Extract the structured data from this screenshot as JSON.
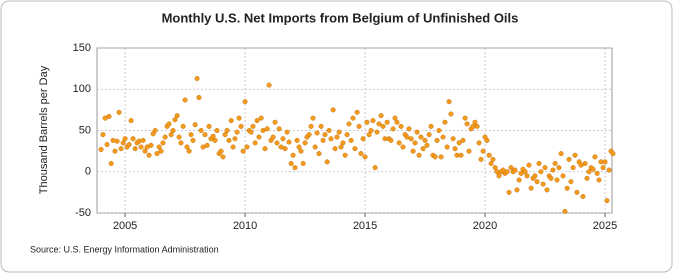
{
  "chart_data": {
    "type": "scatter",
    "title": "Monthly U.S. Net Imports from Belgium of Unfinished Oils",
    "y_label": "Thousand Barrels per Day",
    "source": "Source: U.S. Energy Information Administration",
    "color": "#f59a1c",
    "grid": true,
    "xlim": [
      2003.83,
      2025.29
    ],
    "ylim": [
      -50,
      150
    ],
    "xticks": [
      2005,
      2010,
      2015,
      2020,
      2025
    ],
    "yticks": [
      -50,
      0,
      50,
      100,
      150
    ],
    "x": [
      2004.0,
      2004.08,
      2004.17,
      2004.25,
      2004.33,
      2004.42,
      2004.5,
      2004.58,
      2004.67,
      2004.75,
      2004.83,
      2004.92,
      2005.0,
      2005.08,
      2005.17,
      2005.25,
      2005.33,
      2005.42,
      2005.5,
      2005.58,
      2005.67,
      2005.75,
      2005.83,
      2005.92,
      2006.0,
      2006.08,
      2006.17,
      2006.25,
      2006.33,
      2006.42,
      2006.5,
      2006.58,
      2006.67,
      2006.75,
      2006.83,
      2006.92,
      2007.0,
      2007.08,
      2007.17,
      2007.25,
      2007.33,
      2007.42,
      2007.5,
      2007.58,
      2007.67,
      2007.75,
      2007.83,
      2007.92,
      2008.0,
      2008.08,
      2008.17,
      2008.25,
      2008.33,
      2008.42,
      2008.5,
      2008.58,
      2008.67,
      2008.75,
      2008.83,
      2008.92,
      2009.0,
      2009.08,
      2009.17,
      2009.25,
      2009.33,
      2009.42,
      2009.5,
      2009.58,
      2009.67,
      2009.75,
      2009.83,
      2009.92,
      2010.0,
      2010.08,
      2010.17,
      2010.25,
      2010.33,
      2010.42,
      2010.5,
      2010.58,
      2010.67,
      2010.75,
      2010.83,
      2010.92,
      2011.0,
      2011.08,
      2011.17,
      2011.25,
      2011.33,
      2011.42,
      2011.5,
      2011.58,
      2011.67,
      2011.75,
      2011.83,
      2011.92,
      2012.0,
      2012.08,
      2012.17,
      2012.25,
      2012.33,
      2012.42,
      2012.5,
      2012.58,
      2012.67,
      2012.75,
      2012.83,
      2012.92,
      2013.0,
      2013.08,
      2013.17,
      2013.25,
      2013.33,
      2013.42,
      2013.5,
      2013.58,
      2013.67,
      2013.75,
      2013.83,
      2013.92,
      2014.0,
      2014.08,
      2014.17,
      2014.25,
      2014.33,
      2014.42,
      2014.5,
      2014.58,
      2014.67,
      2014.75,
      2014.83,
      2014.92,
      2015.0,
      2015.08,
      2015.17,
      2015.25,
      2015.33,
      2015.42,
      2015.5,
      2015.58,
      2015.67,
      2015.75,
      2015.83,
      2015.92,
      2016.0,
      2016.08,
      2016.17,
      2016.25,
      2016.33,
      2016.42,
      2016.5,
      2016.58,
      2016.67,
      2016.75,
      2016.83,
      2016.92,
      2017.0,
      2017.08,
      2017.17,
      2017.25,
      2017.33,
      2017.42,
      2017.5,
      2017.58,
      2017.67,
      2017.75,
      2017.83,
      2017.92,
      2018.0,
      2018.08,
      2018.17,
      2018.25,
      2018.33,
      2018.42,
      2018.5,
      2018.58,
      2018.67,
      2018.75,
      2018.83,
      2018.92,
      2019.0,
      2019.08,
      2019.17,
      2019.25,
      2019.33,
      2019.42,
      2019.5,
      2019.58,
      2019.67,
      2019.75,
      2019.83,
      2019.92,
      2020.0,
      2020.08,
      2020.17,
      2020.25,
      2020.33,
      2020.42,
      2020.5,
      2020.58,
      2020.67,
      2020.75,
      2020.83,
      2020.92,
      2021.0,
      2021.08,
      2021.17,
      2021.25,
      2021.33,
      2021.42,
      2021.5,
      2021.58,
      2021.67,
      2021.75,
      2021.83,
      2021.92,
      2022.0,
      2022.08,
      2022.17,
      2022.25,
      2022.33,
      2022.42,
      2022.5,
      2022.58,
      2022.67,
      2022.75,
      2022.83,
      2022.92,
      2023.0,
      2023.08,
      2023.17,
      2023.25,
      2023.33,
      2023.42,
      2023.5,
      2023.58,
      2023.67,
      2023.75,
      2023.83,
      2023.92,
      2024.0,
      2024.08,
      2024.17,
      2024.25,
      2024.33,
      2024.42,
      2024.5,
      2024.58,
      2024.67,
      2024.75,
      2024.83,
      2024.92,
      2025.0,
      2025.08,
      2025.17,
      2025.25,
      2025.33
    ],
    "values": [
      27,
      45,
      65,
      33,
      67,
      10,
      38,
      25,
      37,
      72,
      28,
      35,
      40,
      30,
      33,
      62,
      40,
      28,
      35,
      37,
      30,
      38,
      25,
      30,
      20,
      32,
      46,
      50,
      22,
      30,
      25,
      35,
      42,
      55,
      58,
      45,
      50,
      63,
      68,
      42,
      35,
      55,
      87,
      30,
      25,
      45,
      38,
      57,
      113,
      90,
      50,
      30,
      45,
      32,
      55,
      40,
      43,
      38,
      50,
      22,
      25,
      18,
      45,
      50,
      38,
      62,
      30,
      40,
      48,
      65,
      55,
      25,
      85,
      30,
      50,
      48,
      55,
      35,
      62,
      42,
      65,
      50,
      28,
      52,
      105,
      38,
      42,
      60,
      35,
      52,
      30,
      40,
      28,
      48,
      36,
      10,
      20,
      5,
      38,
      30,
      25,
      10,
      35,
      42,
      45,
      55,
      65,
      30,
      47,
      22,
      55,
      38,
      45,
      12,
      50,
      40,
      75,
      28,
      42,
      48,
      30,
      35,
      20,
      45,
      58,
      38,
      65,
      28,
      72,
      55,
      22,
      40,
      18,
      60,
      45,
      50,
      62,
      5,
      48,
      58,
      68,
      55,
      40,
      60,
      40,
      38,
      52,
      65,
      60,
      35,
      55,
      30,
      45,
      42,
      52,
      40,
      25,
      35,
      48,
      20,
      42,
      28,
      38,
      32,
      45,
      55,
      20,
      18,
      38,
      50,
      18,
      42,
      60,
      30,
      85,
      70,
      40,
      28,
      20,
      35,
      20,
      38,
      65,
      58,
      25,
      52,
      55,
      60,
      55,
      35,
      15,
      25,
      42,
      38,
      20,
      10,
      15,
      5,
      0,
      -5,
      0,
      2,
      -2,
      0,
      -25,
      5,
      0,
      2,
      -22,
      -10,
      -2,
      3,
      0,
      -5,
      8,
      -20,
      -8,
      -5,
      -12,
      10,
      0,
      -15,
      5,
      -22,
      -5,
      -8,
      2,
      10,
      -10,
      5,
      22,
      -5,
      -48,
      -20,
      15,
      -12,
      5,
      20,
      -25,
      12,
      8,
      -30,
      10,
      -8,
      0,
      5,
      3,
      18,
      -2,
      -10,
      12,
      5,
      12,
      -35,
      2,
      25,
      22
    ]
  }
}
